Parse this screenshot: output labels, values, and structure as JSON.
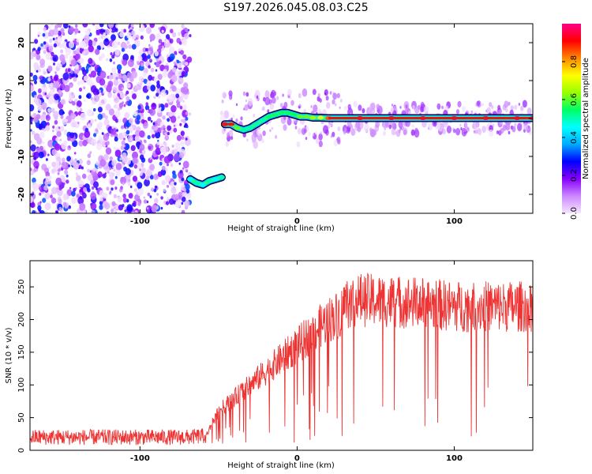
{
  "title": "S197.2026.045.08.03.C25",
  "chart_data": [
    {
      "type": "heatmap",
      "xlabel": "Height of straight line (km)",
      "ylabel": "Frequency (Hz)",
      "xlim": [
        -170,
        150
      ],
      "ylim": [
        -25,
        25
      ],
      "x_ticks": [
        -100,
        0,
        100
      ],
      "y_ticks": [
        -20,
        -10,
        0,
        10,
        20
      ],
      "x_tick_labels": [
        "-100",
        "0",
        "100"
      ],
      "y_tick_labels": [
        "-20",
        "-10",
        "0",
        "10",
        "20"
      ],
      "colorbar": {
        "label": "Normalized spectral amplitude",
        "range": [
          0.0,
          1.0
        ],
        "ticks": [
          0.0,
          0.2,
          0.4,
          0.6,
          0.8
        ],
        "tick_labels": [
          "0.0",
          "0.2",
          "0.4",
          "0.6",
          "0.8"
        ],
        "colors": [
          "#f5e6ff",
          "#cc88ff",
          "#8800ff",
          "#0000ff",
          "#00aaff",
          "#00ffff",
          "#00ff66",
          "#99ff00",
          "#ffff00",
          "#ff8800",
          "#ff0000",
          "#ff0088"
        ]
      },
      "noise_region": {
        "x_range": [
          -170,
          -68
        ],
        "freq_range": [
          -25,
          25
        ],
        "level": 0.2
      },
      "ridge": [
        {
          "x": -68,
          "f": -16.0,
          "a": 0.45
        },
        {
          "x": -64,
          "f": -17.0,
          "a": 0.5
        },
        {
          "x": -60,
          "f": -17.5,
          "a": 0.45
        },
        {
          "x": -56,
          "f": -16.5,
          "a": 0.5
        },
        {
          "x": -52,
          "f": -16.0,
          "a": 0.45
        },
        {
          "x": -48,
          "f": -15.5,
          "a": 0.5
        },
        {
          "x": -46,
          "f": -1.5,
          "a": 0.9
        },
        {
          "x": -42,
          "f": -1.5,
          "a": 0.85
        },
        {
          "x": -38,
          "f": -2.5,
          "a": 0.6
        },
        {
          "x": -34,
          "f": -3.0,
          "a": 0.5
        },
        {
          "x": -30,
          "f": -2.5,
          "a": 0.5
        },
        {
          "x": -26,
          "f": -1.5,
          "a": 0.5
        },
        {
          "x": -22,
          "f": -0.5,
          "a": 0.5
        },
        {
          "x": -18,
          "f": 0.5,
          "a": 0.55
        },
        {
          "x": -14,
          "f": 1.0,
          "a": 0.55
        },
        {
          "x": -10,
          "f": 1.5,
          "a": 0.55
        },
        {
          "x": -6,
          "f": 1.5,
          "a": 0.55
        },
        {
          "x": -2,
          "f": 1.0,
          "a": 0.55
        },
        {
          "x": 2,
          "f": 0.5,
          "a": 0.6
        },
        {
          "x": 6,
          "f": 0.5,
          "a": 0.6
        },
        {
          "x": 10,
          "f": 0.2,
          "a": 0.65
        },
        {
          "x": 15,
          "f": 0.2,
          "a": 0.7
        },
        {
          "x": 20,
          "f": 0.1,
          "a": 0.85
        },
        {
          "x": 40,
          "f": 0.1,
          "a": 0.92
        },
        {
          "x": 60,
          "f": 0.1,
          "a": 0.95
        },
        {
          "x": 80,
          "f": 0.1,
          "a": 0.95
        },
        {
          "x": 100,
          "f": 0.1,
          "a": 0.95
        },
        {
          "x": 120,
          "f": 0.1,
          "a": 0.95
        },
        {
          "x": 140,
          "f": 0.1,
          "a": 0.95
        },
        {
          "x": 150,
          "f": 0.1,
          "a": 0.95
        }
      ]
    },
    {
      "type": "line",
      "xlabel": "Height of straight line (km)",
      "ylabel": "SNR (10 * v/v)",
      "xlim": [
        -170,
        150
      ],
      "ylim": [
        0,
        290
      ],
      "x_ticks": [
        -100,
        0,
        100
      ],
      "y_ticks": [
        0,
        50,
        100,
        150,
        200,
        250
      ],
      "x_tick_labels": [
        "-100",
        "0",
        "100"
      ],
      "y_tick_labels": [
        "0",
        "50",
        "100",
        "150",
        "200",
        "250"
      ],
      "color": "#ee3333",
      "envelope": {
        "x": [
          -170,
          -120,
          -70,
          -58,
          -50,
          -40,
          -30,
          -20,
          -10,
          0,
          10,
          20,
          28,
          30,
          40,
          60,
          80,
          100,
          120,
          140,
          150
        ],
        "y": [
          20,
          20,
          20,
          22,
          60,
          80,
          100,
          120,
          140,
          160,
          180,
          200,
          210,
          225,
          230,
          228,
          225,
          220,
          220,
          220,
          220
        ]
      }
    }
  ]
}
